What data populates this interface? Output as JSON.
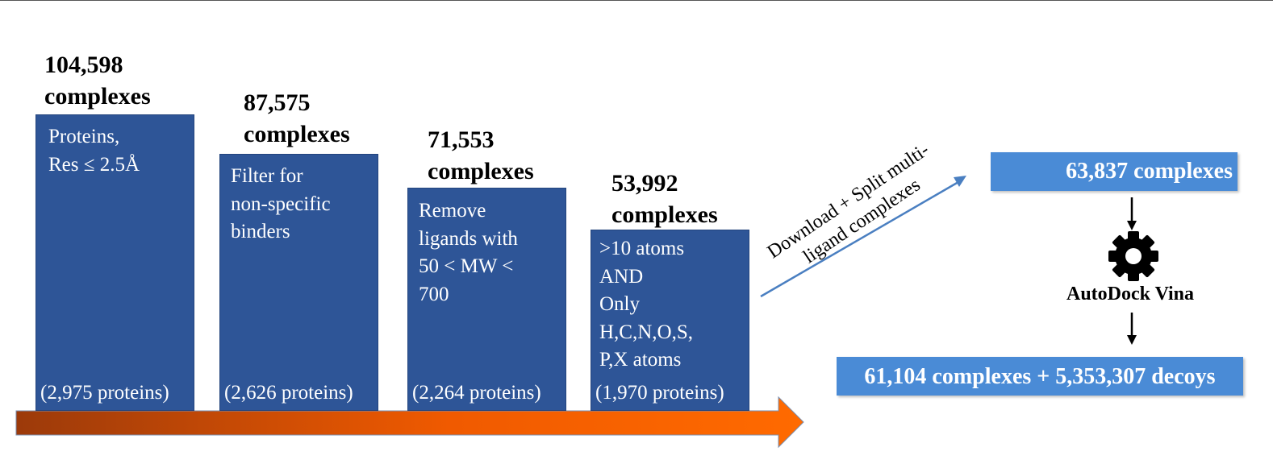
{
  "stages": [
    {
      "count": "104,598\ncomplexes",
      "description": "Proteins,\nRes ≤ 2.5Å",
      "proteins": "(2,975 proteins)"
    },
    {
      "count": "87,575\ncomplexes",
      "description": "Filter for\nnon-specific\nbinders",
      "proteins": "(2,626 proteins)"
    },
    {
      "count": "71,553\ncomplexes",
      "description": "Remove\nligands with\n50 < MW <\n700",
      "proteins": "(2,264 proteins)"
    },
    {
      "count": "53,992\ncomplexes",
      "description": ">10 atoms\nAND\nOnly\nH,C,N,O,S,\nP,X atoms",
      "proteins": "(1,970 proteins)"
    }
  ],
  "split_step": {
    "line1": "Download + Split multi-",
    "line2": "ligand complexes"
  },
  "result_box": "63,837 complexes",
  "docking_tool": {
    "label": "AutoDock Vina",
    "icon": "gear-icon"
  },
  "final_box": "61,104 complexes + 5,353,307 decoys",
  "colors": {
    "stage_box": "#2e5597",
    "light_box": "#4a8bd6",
    "arrow_start": "#9c3a0a",
    "arrow_end": "#ff6a00",
    "diagonal_arrow": "#4a7fc1"
  }
}
